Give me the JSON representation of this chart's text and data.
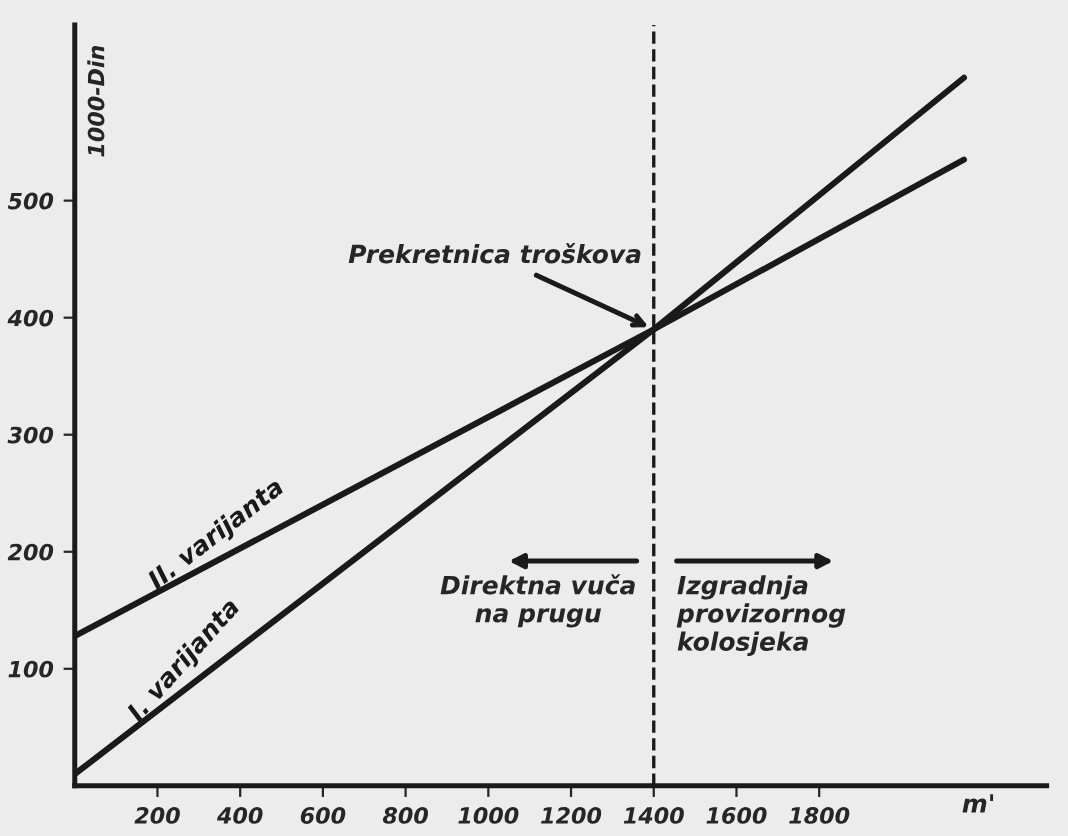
{
  "chart_data": {
    "type": "line",
    "xlabel": "m'",
    "ylabel": "1000-Din",
    "x": [
      0,
      1400,
      2150
    ],
    "series": [
      {
        "name": "II. varijanta",
        "color": "#1a1a1a",
        "values": [
          128,
          390,
          535
        ]
      },
      {
        "name": "I. varijanta",
        "color": "#1a1a1a",
        "values": [
          10,
          390,
          605
        ]
      }
    ],
    "xlim": [
      0,
      2350
    ],
    "ylim": [
      0,
      650
    ],
    "xticks": [
      200,
      400,
      600,
      800,
      1000,
      1200,
      1400,
      1600,
      1800
    ],
    "yticks": [
      100,
      200,
      300,
      400,
      500
    ],
    "ref_lines": [
      {
        "axis": "x",
        "value": 1400,
        "line_style": "dashed",
        "color": "#1a1a1a"
      }
    ],
    "annotations": [
      {
        "text": "Prekretnica troškova",
        "x": 1400,
        "y": 390
      },
      "Direktna vuča\nna prugu",
      "Izgradnja\nprovizornog\nkolosjeka"
    ],
    "grid": false,
    "legend": false,
    "marker": "none",
    "line_style": "solid"
  }
}
